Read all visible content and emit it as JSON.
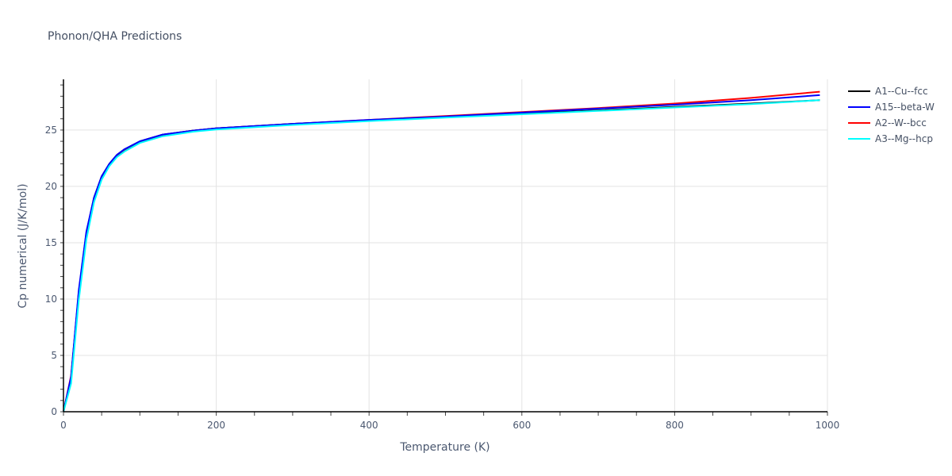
{
  "title": "Phonon/QHA Predictions",
  "chart_data": {
    "type": "line",
    "title": "Phonon/QHA Predictions",
    "xlabel": "Temperature (K)",
    "ylabel": "Cp numerical (J/K/mol)",
    "xlim": [
      0,
      1000
    ],
    "ylim": [
      0,
      29.5
    ],
    "xticks": [
      0,
      200,
      400,
      600,
      800,
      1000
    ],
    "yticks": [
      0,
      5,
      10,
      15,
      20,
      25
    ],
    "grid": true,
    "legend_position": "right-top",
    "x": [
      0,
      10,
      20,
      30,
      40,
      50,
      60,
      70,
      80,
      100,
      130,
      170,
      200,
      300,
      400,
      500,
      600,
      700,
      800,
      900,
      990
    ],
    "series": [
      {
        "name": "A1--Cu--fcc",
        "color": "#000000",
        "values": [
          0,
          3.0,
          10.6,
          15.9,
          19.0,
          20.9,
          22.0,
          22.8,
          23.3,
          24.0,
          24.6,
          24.95,
          25.15,
          25.55,
          25.85,
          26.15,
          26.45,
          26.75,
          27.05,
          27.35,
          27.65
        ]
      },
      {
        "name": "A15--beta-W",
        "color": "#0000ff",
        "values": [
          0,
          3.1,
          10.8,
          16.0,
          19.0,
          20.9,
          22.0,
          22.8,
          23.3,
          24.0,
          24.6,
          24.95,
          25.15,
          25.55,
          25.9,
          26.2,
          26.55,
          26.9,
          27.25,
          27.65,
          28.1
        ]
      },
      {
        "name": "A2--W--bcc",
        "color": "#ff0000",
        "values": [
          0,
          3.2,
          10.5,
          15.8,
          18.9,
          20.8,
          21.95,
          22.75,
          23.25,
          23.95,
          24.55,
          24.95,
          25.15,
          25.55,
          25.9,
          26.25,
          26.6,
          26.95,
          27.35,
          27.85,
          28.4
        ]
      },
      {
        "name": "A3--Mg--hcp",
        "color": "#00ffff",
        "values": [
          0,
          2.5,
          9.9,
          15.3,
          18.6,
          20.6,
          21.8,
          22.6,
          23.1,
          23.85,
          24.45,
          24.85,
          25.05,
          25.45,
          25.8,
          26.1,
          26.4,
          26.7,
          27.0,
          27.3,
          27.65
        ]
      }
    ]
  }
}
